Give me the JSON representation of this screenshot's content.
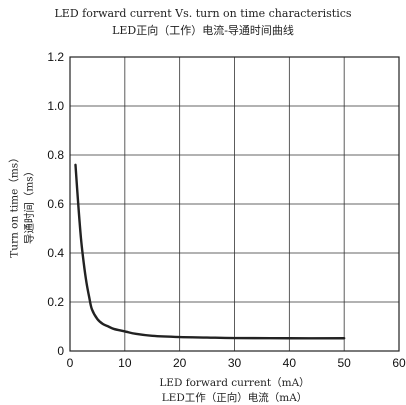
{
  "chart_data": {
    "type": "line",
    "title": "LED forward current Vs. turn on time characteristics",
    "subtitle": "LED正向（工作）电流-导通时间曲线",
    "xlabel": "LED forward current（mA）",
    "xlabel_cn": "LED工作（正向）电流（mA）",
    "ylabel": "Turn on time（ms）",
    "ylabel_cn": "导通时间（ms）",
    "xlim": [
      0,
      60
    ],
    "ylim": [
      0,
      1.2
    ],
    "xticks": [
      0,
      10,
      20,
      30,
      40,
      50,
      60
    ],
    "xtick_labels": [
      "0",
      "10",
      "20",
      "30",
      "40",
      "50",
      "60"
    ],
    "yticks": [
      0,
      0.2,
      0.4,
      0.6,
      0.8,
      1.0,
      1.2
    ],
    "ytick_labels": [
      "0",
      "0.2",
      "0.4",
      "0.6",
      "0.8",
      "1.0",
      "1.2"
    ],
    "grid": true,
    "series": [
      {
        "x": [
          1,
          1.5,
          2,
          2.5,
          3,
          3.5,
          4,
          5,
          6,
          7,
          8,
          10,
          12,
          15,
          20,
          25,
          30,
          40,
          50
        ],
        "y": [
          0.76,
          0.6,
          0.46,
          0.36,
          0.28,
          0.22,
          0.17,
          0.13,
          0.11,
          0.1,
          0.09,
          0.08,
          0.07,
          0.062,
          0.057,
          0.055,
          0.053,
          0.052,
          0.052
        ],
        "color": "#222222"
      }
    ]
  }
}
